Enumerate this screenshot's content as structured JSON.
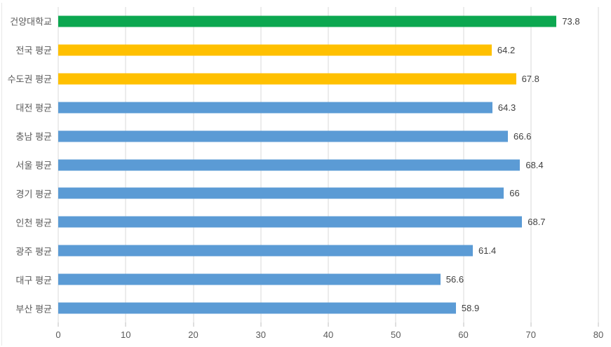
{
  "chart_data": {
    "type": "bar",
    "orientation": "horizontal",
    "title": "",
    "xlabel": "",
    "ylabel": "",
    "categories": [
      "건양대학교",
      "전국 평균",
      "수도권 평균",
      "대전 평균",
      "충남 평균",
      "서울 평균",
      "경기 평균",
      "인천 평균",
      "광주 평균",
      "대구 평균",
      "부산 평균"
    ],
    "values": [
      73.8,
      64.2,
      67.8,
      64.3,
      66.6,
      68.4,
      66,
      68.7,
      61.4,
      56.6,
      58.9
    ],
    "value_labels": [
      "73.8",
      "64.2",
      "67.8",
      "64.3",
      "66.6",
      "68.4",
      "66",
      "68.7",
      "61.4",
      "56.6",
      "58.9"
    ],
    "bar_colors": [
      "#0ca750",
      "#ffc000",
      "#ffc000",
      "#5b9bd5",
      "#5b9bd5",
      "#5b9bd5",
      "#5b9bd5",
      "#5b9bd5",
      "#5b9bd5",
      "#5b9bd5",
      "#5b9bd5"
    ],
    "xlim": [
      0,
      80
    ],
    "x_ticks": [
      "0",
      "10",
      "20",
      "30",
      "40",
      "50",
      "60",
      "70",
      "80"
    ],
    "grid": true,
    "legend": false,
    "data_labels": true
  },
  "colors": {
    "gridline": "#d9d9d9",
    "tick_mark": "#bfbfbf",
    "tick_label": "#595959",
    "category_label": "#595959",
    "value_label": "#404040",
    "highlight_green": "#0ca750",
    "highlight_gold": "#ffc000",
    "series_blue": "#5b9bd5",
    "background": "#ffffff"
  }
}
